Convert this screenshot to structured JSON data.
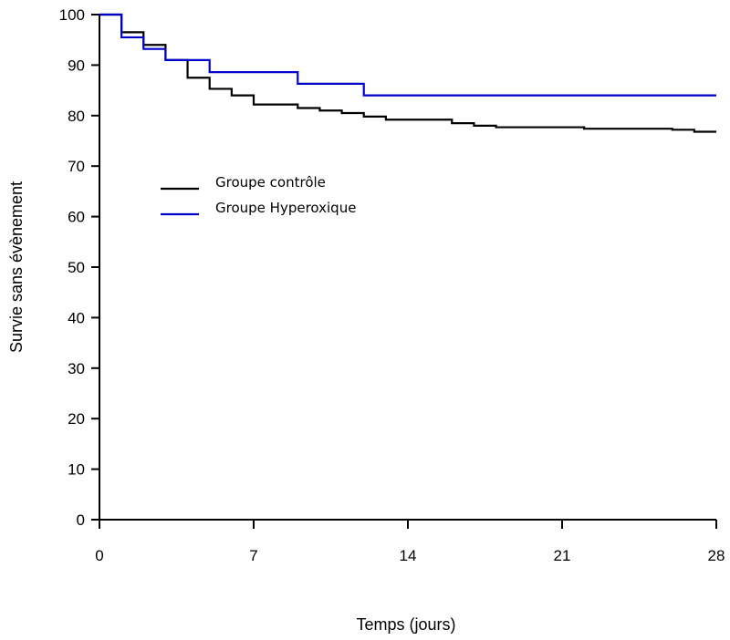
{
  "chart_data": {
    "type": "line",
    "step": true,
    "title": "",
    "xlabel": "Temps (jours)",
    "ylabel": "Survie sans évènement",
    "xlim": [
      0,
      28
    ],
    "ylim": [
      0,
      100
    ],
    "xticks": [
      0,
      7,
      14,
      21,
      28
    ],
    "yticks": [
      0,
      10,
      20,
      30,
      40,
      50,
      60,
      70,
      80,
      90,
      100
    ],
    "grid": false,
    "legend_position": "upper-left inside plot",
    "series": [
      {
        "name": "Groupe contrôle",
        "color": "#000000",
        "x": [
          0,
          1,
          2,
          3,
          4,
          5,
          6,
          7,
          9,
          10,
          11,
          12,
          13,
          16,
          17,
          18,
          22,
          26,
          27,
          28
        ],
        "y": [
          100,
          96.5,
          94,
          91,
          87.5,
          85.3,
          84,
          82.2,
          81.5,
          81,
          80.5,
          79.8,
          79.2,
          78.5,
          78,
          77.7,
          77.4,
          77.2,
          76.8,
          76.8
        ]
      },
      {
        "name": "Groupe Hyperoxique",
        "color": "#0000cc",
        "x": [
          0,
          1,
          2,
          3,
          5,
          9,
          12,
          28
        ],
        "y": [
          100,
          95.5,
          93.2,
          91,
          88.6,
          86.3,
          84,
          84
        ]
      }
    ]
  }
}
